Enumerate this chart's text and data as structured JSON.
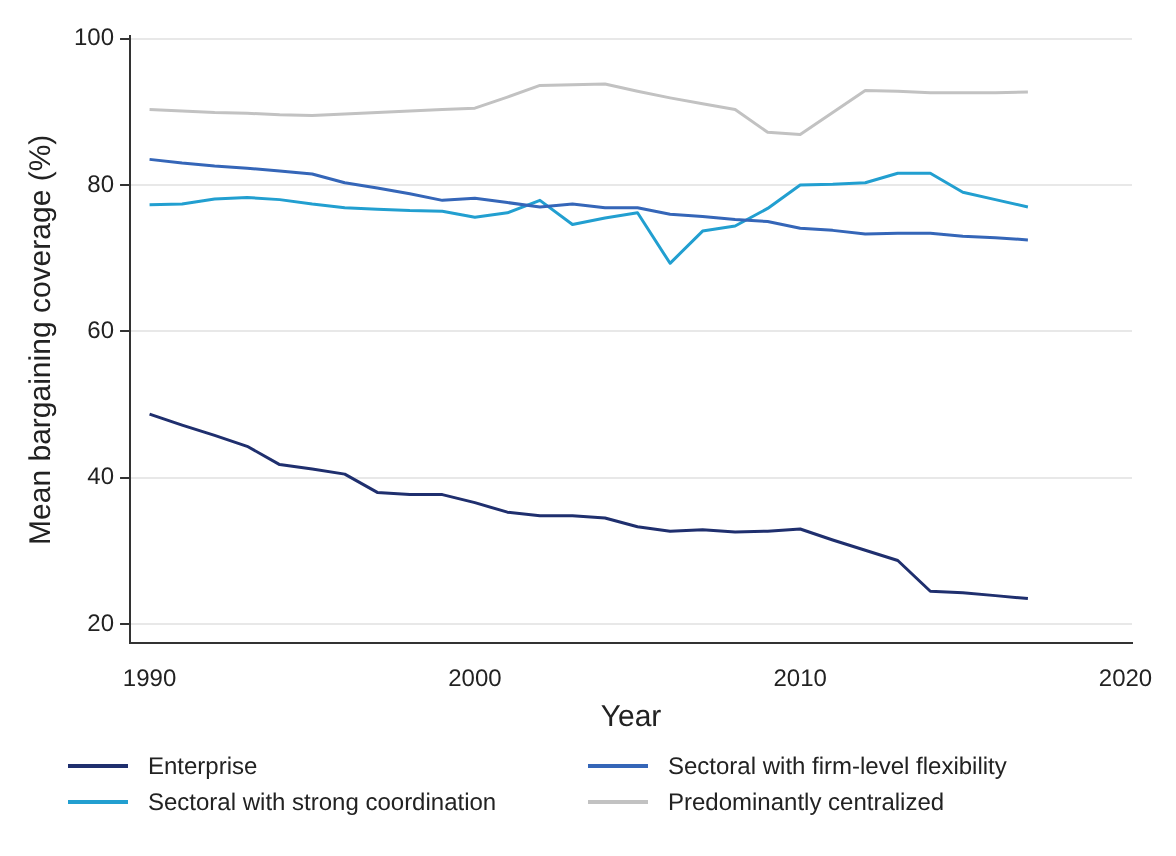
{
  "chart_data": {
    "type": "line",
    "xlabel": "Year",
    "ylabel": "Mean bargaining coverage (%)",
    "x": [
      1990,
      1991,
      1992,
      1993,
      1994,
      1995,
      1996,
      1997,
      1998,
      1999,
      2000,
      2001,
      2002,
      2003,
      2004,
      2005,
      2006,
      2007,
      2008,
      2009,
      2010,
      2011,
      2012,
      2013,
      2014,
      2015,
      2016,
      2017
    ],
    "xlim": [
      1989.4,
      2020.2
    ],
    "xticks": [
      1990,
      2000,
      2010,
      2020
    ],
    "ylim": [
      17.4,
      100.3
    ],
    "yticks": [
      20,
      40,
      60,
      80,
      100
    ],
    "grid": "y",
    "legend": "bottom",
    "marker": "none",
    "line_style": "solid",
    "series": [
      {
        "name": "Enterprise",
        "color": "#1f2f6e",
        "values": [
          48.7,
          47.2,
          45.8,
          44.3,
          41.8,
          41.2,
          40.5,
          38.0,
          37.7,
          37.7,
          36.6,
          35.3,
          34.8,
          34.8,
          34.5,
          33.3,
          32.7,
          32.9,
          32.6,
          32.7,
          33.0,
          31.5,
          30.1,
          28.7,
          24.5,
          24.3,
          23.9,
          23.5
        ]
      },
      {
        "name": "Sectoral with firm-level flexibility",
        "color": "#3566b8",
        "values": [
          83.5,
          83.0,
          82.6,
          82.3,
          81.9,
          81.5,
          80.3,
          79.6,
          78.8,
          77.9,
          78.2,
          77.6,
          77.0,
          77.4,
          76.9,
          76.9,
          76.0,
          75.7,
          75.3,
          75.0,
          74.1,
          73.8,
          73.3,
          73.4,
          73.4,
          73.0,
          72.8,
          72.5
        ]
      },
      {
        "name": "Sectoral with strong coordination",
        "color": "#229fd0",
        "values": [
          77.3,
          77.4,
          78.1,
          78.3,
          78.0,
          77.4,
          76.9,
          76.7,
          76.5,
          76.4,
          75.6,
          76.2,
          77.9,
          74.6,
          75.5,
          76.2,
          69.3,
          73.7,
          74.4,
          76.8,
          80.0,
          80.1,
          80.3,
          81.6,
          81.6,
          79.0,
          78.0,
          77.0
        ]
      },
      {
        "name": "Predominantly centralized",
        "color": "#c2c2c2",
        "values": [
          90.3,
          90.1,
          89.9,
          89.8,
          89.6,
          89.5,
          89.7,
          89.9,
          90.1,
          90.3,
          90.5,
          92.0,
          93.6,
          93.7,
          93.8,
          92.8,
          91.9,
          91.1,
          90.3,
          87.2,
          86.9,
          89.9,
          92.9,
          92.8,
          92.6,
          92.6,
          92.6,
          92.7
        ]
      }
    ]
  }
}
